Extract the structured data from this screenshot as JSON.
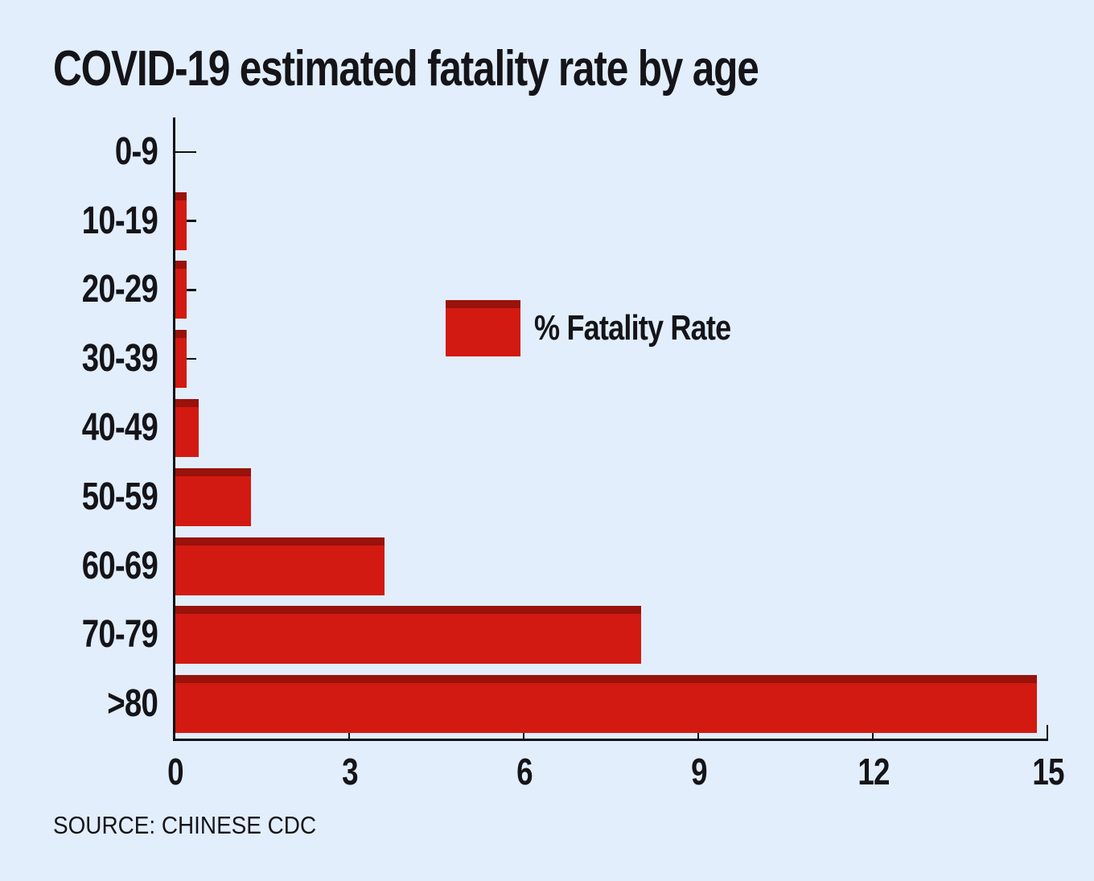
{
  "chart_data": {
    "type": "bar",
    "orientation": "horizontal",
    "title": "COVID-19 estimated fatality rate by age",
    "categories": [
      "0-9",
      "10-19",
      "20-29",
      "30-39",
      "40-49",
      "50-59",
      "60-69",
      "70-79",
      ">80"
    ],
    "values": [
      0,
      0.2,
      0.2,
      0.2,
      0.4,
      1.3,
      3.6,
      8,
      14.8
    ],
    "value_unit": "%",
    "legend": "% Fatality Rate",
    "legend_position": "center-of-plot",
    "xlabel": "",
    "ylabel": "",
    "xlim": [
      0,
      15
    ],
    "x_ticks": [
      0,
      3,
      6,
      9,
      12,
      15
    ],
    "grid": false,
    "ticks_direction": "in",
    "source": "SOURCE: CHINESE CDC",
    "colors": {
      "background": "#e2eefc",
      "bar": "#d21a12",
      "bar_top_cap": "#99120c",
      "text": "#141419",
      "axis": "#0e1116"
    }
  }
}
